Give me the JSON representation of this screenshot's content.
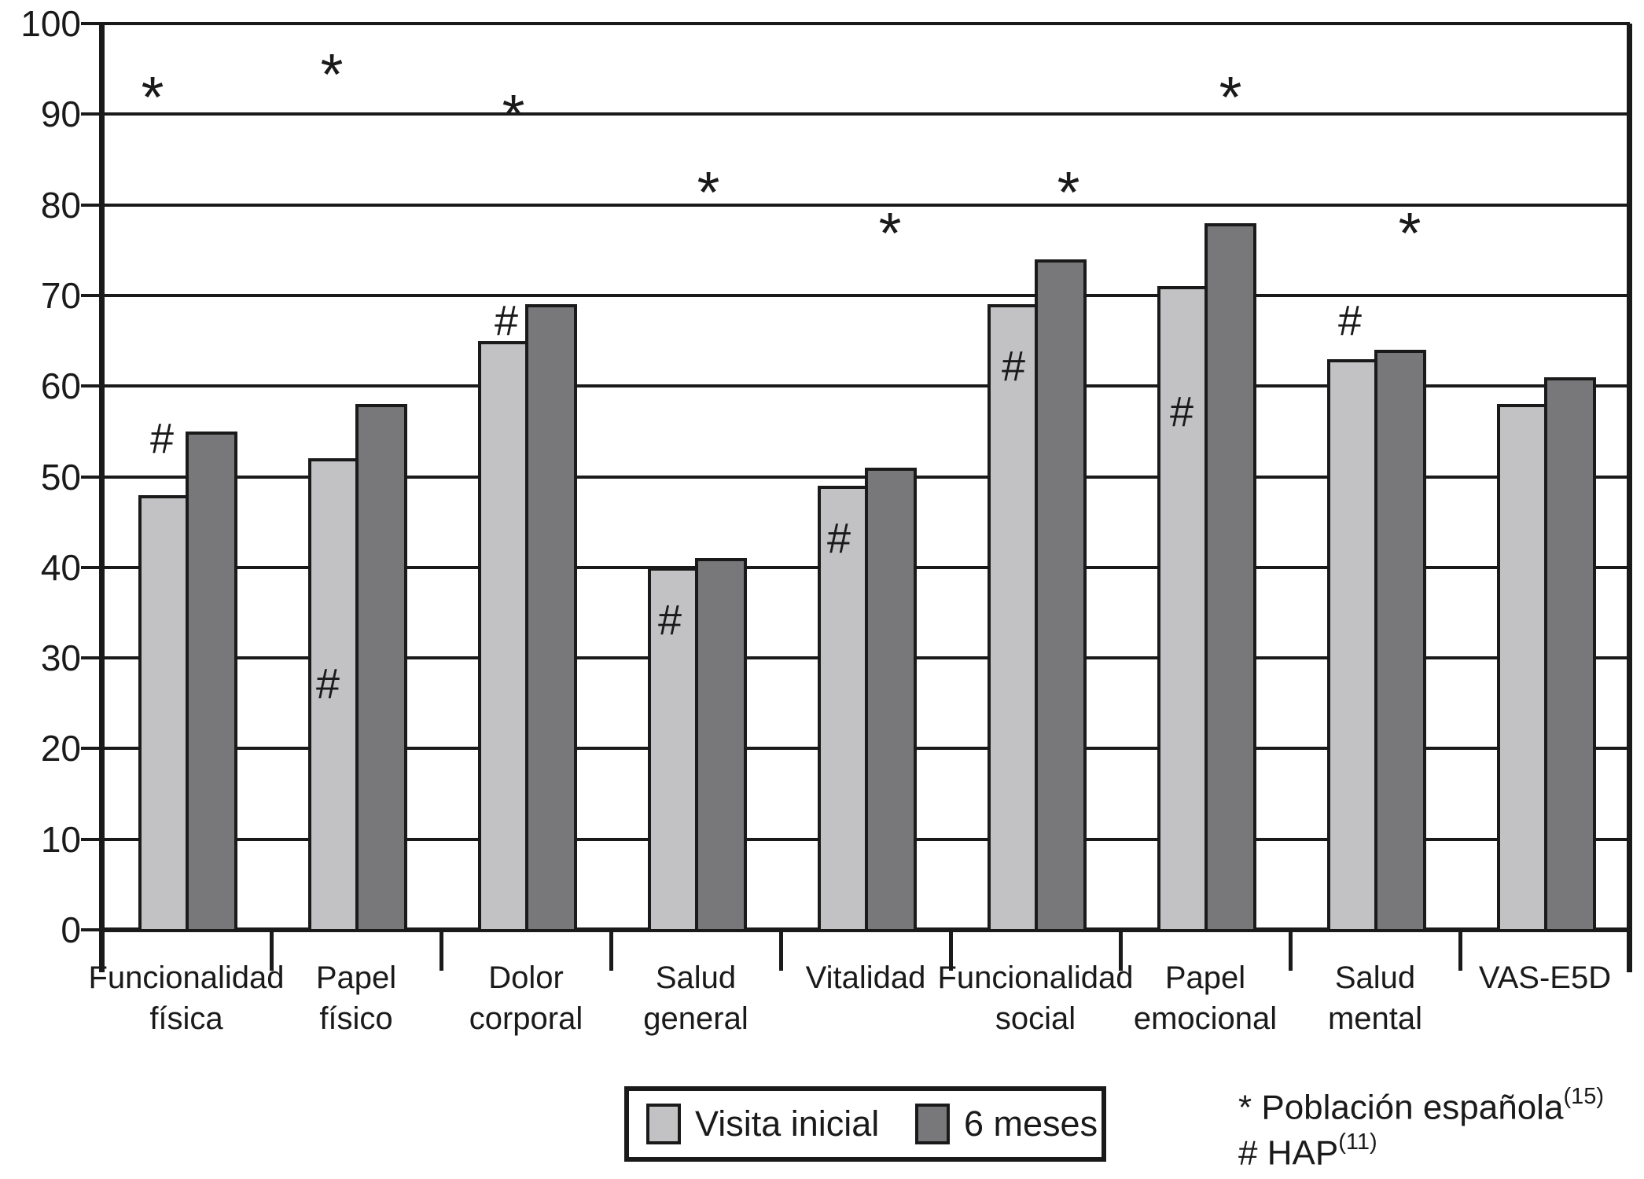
{
  "figure": {
    "background": "#ffffff",
    "line_color": "#1a1a1a"
  },
  "chart_data": {
    "type": "bar",
    "title": "",
    "xlabel": "",
    "ylabel": "",
    "ylim": [
      0,
      100
    ],
    "yticks": [
      0,
      10,
      20,
      30,
      40,
      50,
      60,
      70,
      80,
      90,
      100
    ],
    "grid": true,
    "legend_position": "bottom-center",
    "categories": [
      [
        "Funcionalidad",
        "física"
      ],
      [
        "Papel",
        "físico"
      ],
      [
        "Dolor",
        "corporal"
      ],
      [
        "Salud",
        "general"
      ],
      [
        "Vitalidad"
      ],
      [
        "Funcionalidad",
        "social"
      ],
      [
        "Papel",
        "emocional"
      ],
      [
        "Salud",
        "mental"
      ],
      [
        "VAS-E5D"
      ]
    ],
    "series": [
      {
        "name": "Visita inicial",
        "color": "#c2c2c4",
        "values": [
          48,
          52,
          65,
          40,
          49,
          69,
          71,
          63,
          58
        ]
      },
      {
        "name": "6 meses",
        "color": "#78787b",
        "values": [
          55,
          58,
          69,
          41,
          51,
          74,
          78,
          64,
          61
        ]
      }
    ],
    "reference_markers": [
      {
        "symbol": "*",
        "name": "Población española",
        "citation": "(15)",
        "values": [
          93,
          95.5,
          91,
          82.5,
          78,
          82.5,
          93,
          78,
          null
        ]
      },
      {
        "symbol": "#",
        "name": "HAP",
        "citation": "(11)",
        "values": [
          54,
          27,
          67,
          34,
          43,
          62,
          57,
          67,
          null
        ]
      }
    ]
  },
  "legend": {
    "items": [
      {
        "label": "Visita inicial"
      },
      {
        "label": "6 meses"
      }
    ]
  },
  "footnotes": [
    {
      "symbol": "*",
      "text": " Población española",
      "sup": "(15)"
    },
    {
      "symbol": "#",
      "text": " HAP",
      "sup": "(11)"
    }
  ]
}
